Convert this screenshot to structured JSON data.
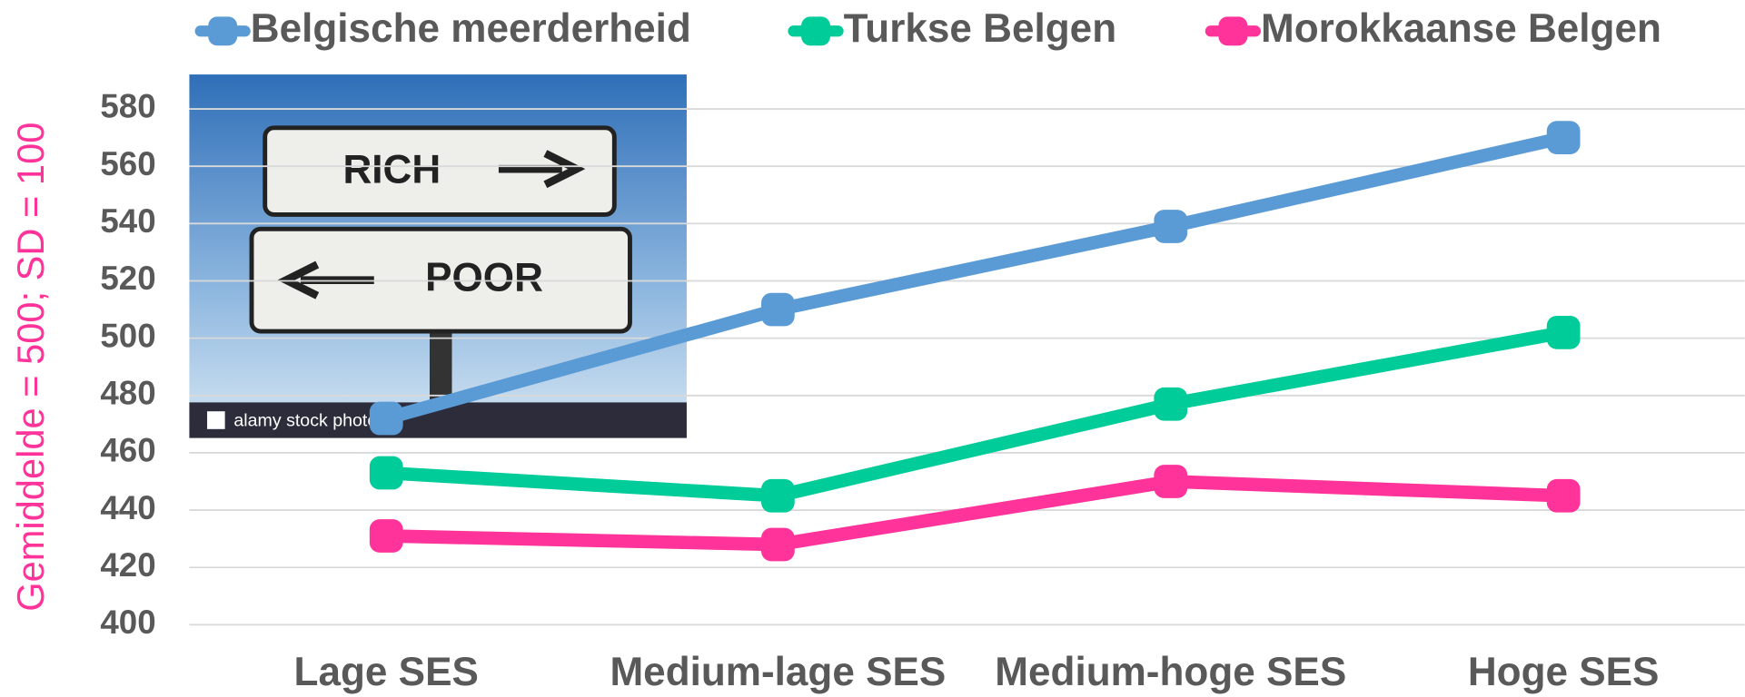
{
  "chart_data": {
    "type": "line",
    "ylabel": "Gemiddelde = 500; SD = 100",
    "categories": [
      "Lage SES",
      "Medium-lage SES",
      "Medium-hoge SES",
      "Hoge SES"
    ],
    "series": [
      {
        "name": "Belgische meerderheid",
        "color": "#5b9bd5",
        "values": [
          472,
          510,
          539,
          570
        ]
      },
      {
        "name": "Turkse Belgen",
        "color": "#00cc99",
        "values": [
          453,
          445,
          477,
          502
        ]
      },
      {
        "name": "Morokkaanse Belgen",
        "color": "#ff3399",
        "values": [
          431,
          428,
          450,
          445
        ]
      }
    ],
    "ylim": [
      400,
      580
    ],
    "yticks": [
      400,
      420,
      440,
      460,
      480,
      500,
      520,
      540,
      560,
      580
    ],
    "grid": true,
    "legend": "top"
  },
  "image": {
    "sign_top": "RICH",
    "sign_bottom": "POOR",
    "credit": "alamy stock photo"
  }
}
